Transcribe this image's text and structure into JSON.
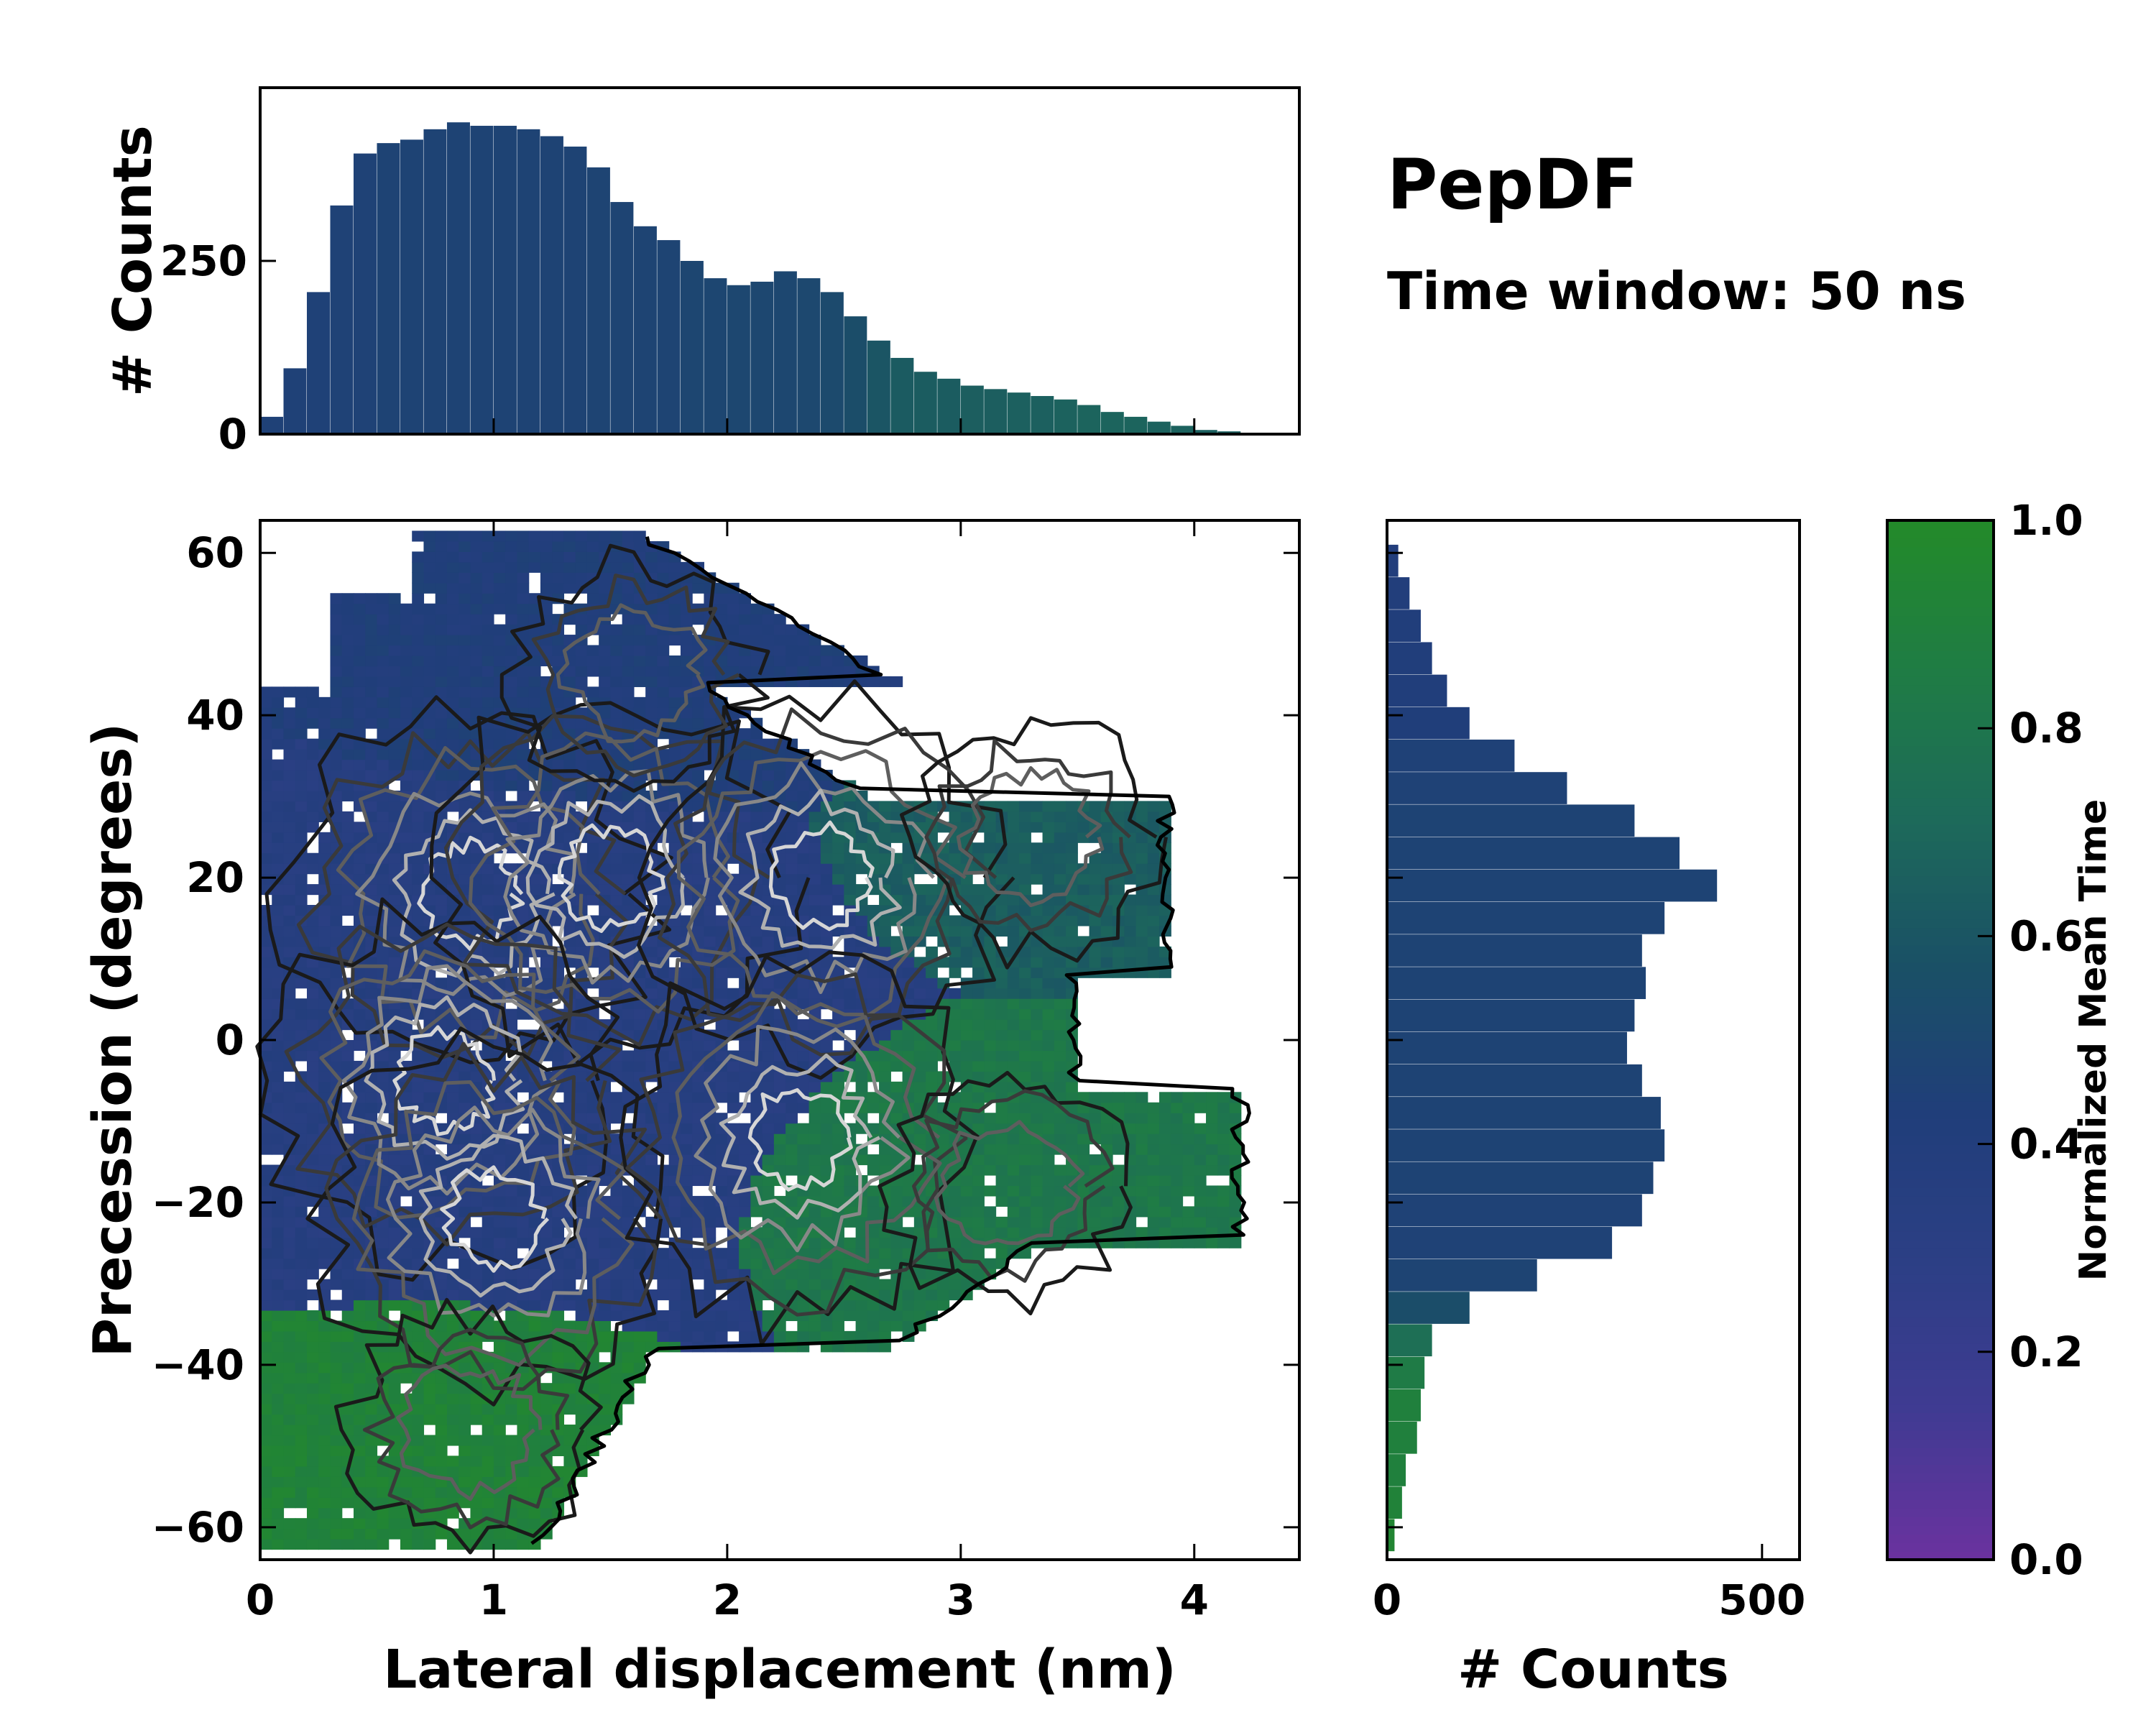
{
  "figure": {
    "title": "PepDF",
    "subtitle": "Time window: 50 ns"
  },
  "colors": {
    "cmap": [
      "#6a329f",
      "#3f3b92",
      "#2c3f85",
      "#203e7a",
      "#1a5066",
      "#1d6a5a",
      "#1f7c45",
      "#238a2a"
    ],
    "edge": "#000000",
    "contour_levels": [
      "#1a1a1a",
      "#3a3a3a",
      "#5e5e5e",
      "#888888",
      "#b0b0b0",
      "#d6d6d6"
    ]
  },
  "chart_data": [
    {
      "id": "top_histogram",
      "type": "bar",
      "ylabel": "# Counts",
      "xlim": [
        0,
        4.45
      ],
      "ylim": [
        0,
        500
      ],
      "yticks": [
        0,
        250
      ],
      "bin_centers": [
        0.05,
        0.15,
        0.25,
        0.35,
        0.45,
        0.55,
        0.65,
        0.75,
        0.85,
        0.95,
        1.05,
        1.15,
        1.25,
        1.35,
        1.45,
        1.55,
        1.65,
        1.75,
        1.85,
        1.95,
        2.05,
        2.15,
        2.25,
        2.35,
        2.45,
        2.55,
        2.65,
        2.75,
        2.85,
        2.95,
        3.05,
        3.15,
        3.25,
        3.35,
        3.45,
        3.55,
        3.65,
        3.75,
        3.85,
        3.95,
        4.05,
        4.15,
        4.25,
        4.35
      ],
      "values": [
        25,
        95,
        205,
        330,
        405,
        420,
        425,
        440,
        450,
        445,
        445,
        440,
        430,
        415,
        385,
        335,
        300,
        280,
        250,
        225,
        215,
        220,
        235,
        225,
        205,
        170,
        135,
        110,
        90,
        80,
        70,
        65,
        60,
        55,
        50,
        42,
        32,
        25,
        18,
        12,
        6,
        4,
        2,
        1
      ],
      "mean_time": [
        0.45,
        0.45,
        0.45,
        0.46,
        0.46,
        0.47,
        0.47,
        0.47,
        0.47,
        0.47,
        0.47,
        0.47,
        0.47,
        0.47,
        0.48,
        0.48,
        0.48,
        0.48,
        0.49,
        0.49,
        0.5,
        0.5,
        0.5,
        0.51,
        0.52,
        0.55,
        0.6,
        0.63,
        0.64,
        0.64,
        0.65,
        0.65,
        0.66,
        0.66,
        0.67,
        0.68,
        0.68,
        0.68,
        0.67,
        0.67,
        0.66,
        0.66,
        0.65,
        0.65
      ]
    },
    {
      "id": "right_histogram",
      "type": "bar",
      "orientation": "horizontal",
      "xlabel": "# Counts",
      "xlim": [
        0,
        550
      ],
      "ylim": [
        -64,
        64
      ],
      "xticks": [
        0,
        500
      ],
      "bin_centers": [
        -61,
        -57,
        -53,
        -49,
        -45,
        -41,
        -37,
        -33,
        -29,
        -25,
        -21,
        -17,
        -13,
        -9,
        -5,
        -1,
        3,
        7,
        11,
        15,
        19,
        23,
        27,
        31,
        35,
        39,
        43,
        47,
        51,
        55,
        59
      ],
      "values": [
        10,
        20,
        25,
        40,
        45,
        50,
        60,
        110,
        200,
        300,
        340,
        355,
        370,
        365,
        340,
        320,
        330,
        345,
        340,
        370,
        440,
        390,
        330,
        240,
        170,
        110,
        80,
        60,
        45,
        30,
        15
      ],
      "mean_time": [
        0.95,
        0.92,
        0.9,
        0.9,
        0.9,
        0.85,
        0.75,
        0.55,
        0.48,
        0.46,
        0.46,
        0.47,
        0.47,
        0.47,
        0.47,
        0.47,
        0.47,
        0.47,
        0.47,
        0.47,
        0.47,
        0.47,
        0.47,
        0.46,
        0.45,
        0.43,
        0.42,
        0.42,
        0.42,
        0.41,
        0.4
      ]
    },
    {
      "id": "main_heatmap",
      "type": "heatmap",
      "xlabel": "Lateral displacement (nm)",
      "ylabel": "Precession (degrees)",
      "xlim": [
        0,
        4.45
      ],
      "ylim": [
        -64,
        64
      ],
      "xticks": [
        0,
        1,
        2,
        3,
        4
      ],
      "yticks": [
        -60,
        -40,
        -20,
        0,
        20,
        40,
        60
      ],
      "grid": false,
      "regions": [
        {
          "name": "upper",
          "mean_time": 0.42,
          "x_center": 1.5,
          "y_center": 42,
          "sx": 0.8,
          "sy": 12
        },
        {
          "name": "core",
          "mean_time": 0.35,
          "x_center": 1.2,
          "y_center": 5,
          "sx": 0.9,
          "sy": 25
        },
        {
          "name": "right-upper",
          "mean_time": 0.65,
          "x_center": 3.3,
          "y_center": 25,
          "sx": 0.6,
          "sy": 10
        },
        {
          "name": "right-lower",
          "mean_time": 0.82,
          "x_center": 3.2,
          "y_center": -18,
          "sx": 0.8,
          "sy": 12
        },
        {
          "name": "bottom-left",
          "mean_time": 0.92,
          "x_center": 0.9,
          "y_center": -48,
          "sx": 0.6,
          "sy": 10
        }
      ]
    },
    {
      "id": "colorbar",
      "type": "colorbar",
      "label": "Normalized Mean Time",
      "range": [
        0,
        1
      ],
      "ticks": [
        "0.0",
        "0.2",
        "0.4",
        "0.6",
        "0.8",
        "1.0"
      ]
    }
  ]
}
